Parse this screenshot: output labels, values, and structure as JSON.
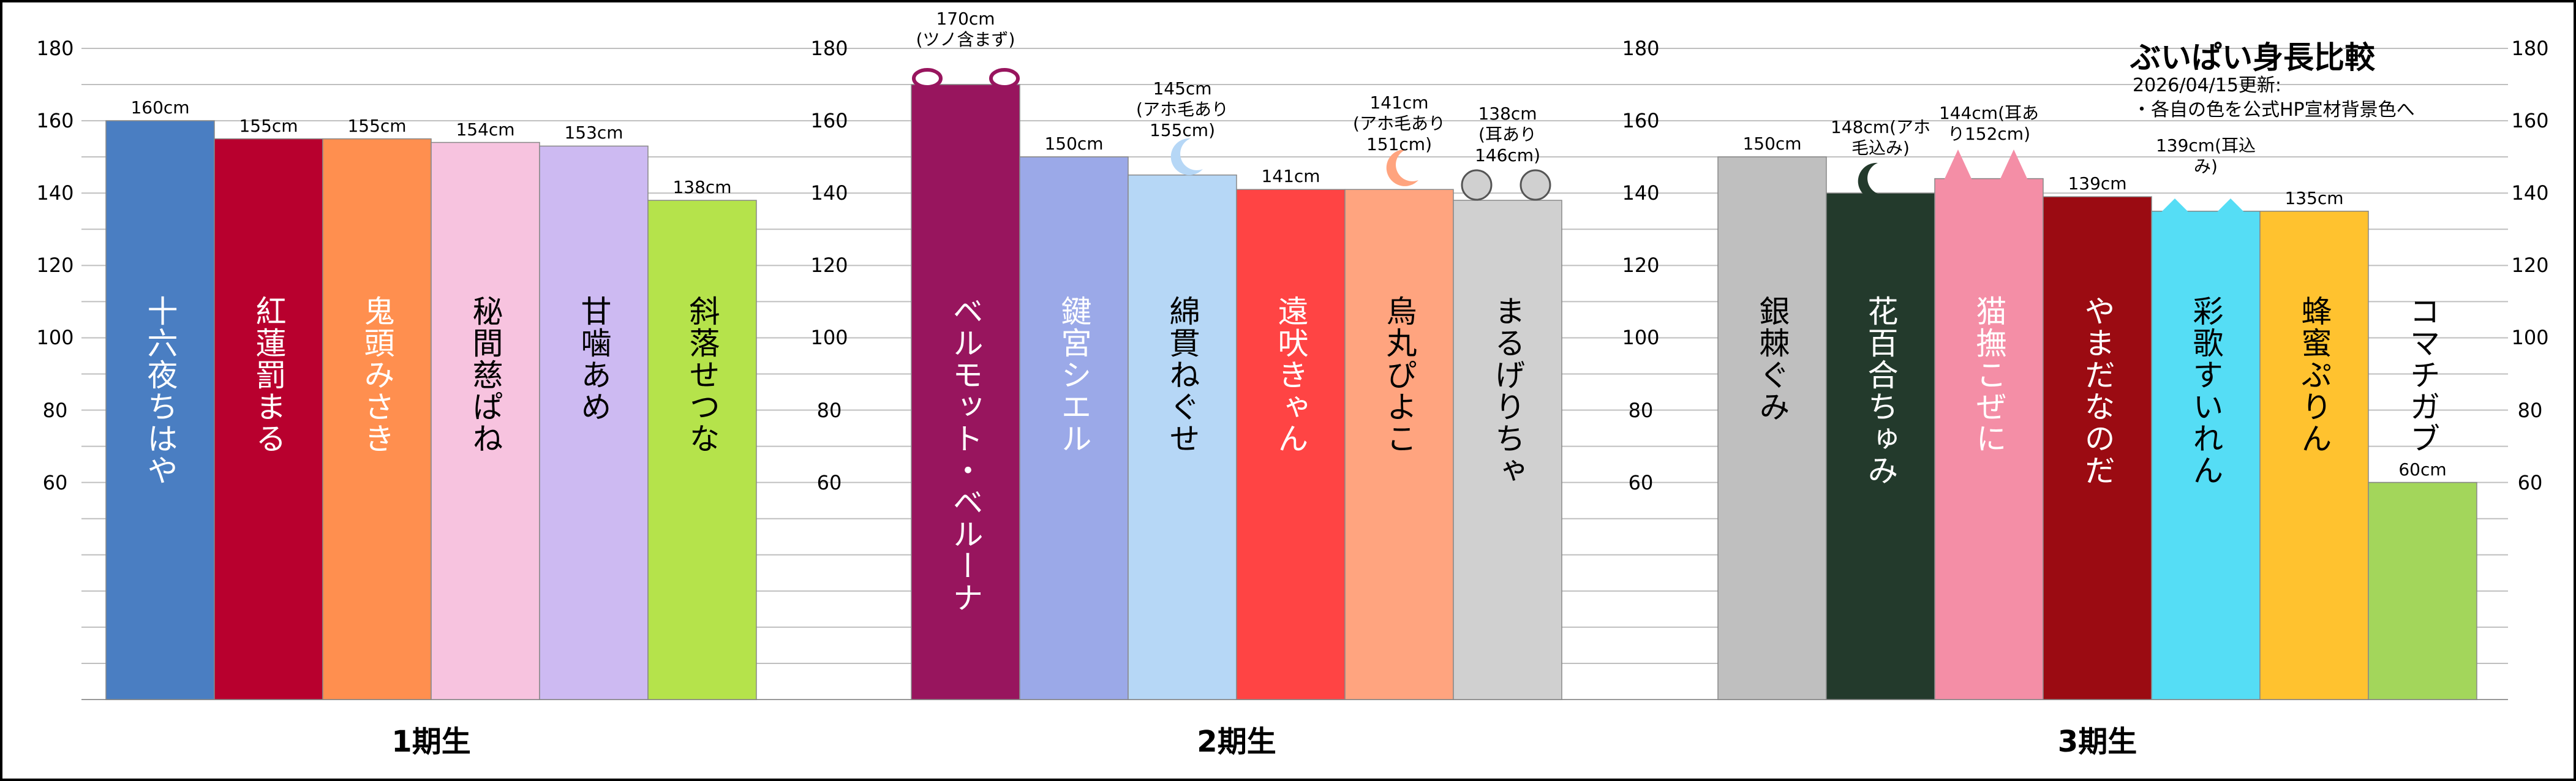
{
  "header": {
    "title": "ぶいぱい身長比較",
    "lines": [
      "2026/04/15更新:",
      "・各自の色を公式HP宣材背景色へ"
    ]
  },
  "chart_data": [
    {
      "type": "bar",
      "title": "1期生",
      "categories": [
        "十六夜ちはや",
        "紅蓮罰まる",
        "鬼頭みさき",
        "秘間慈ぱね",
        "甘噛あめ",
        "斜落せつな"
      ],
      "values": [
        160,
        155,
        155,
        154,
        153,
        138
      ],
      "value_labels": [
        "160cm",
        "155cm",
        "155cm",
        "154cm",
        "153cm",
        "138cm"
      ],
      "notes": [
        null,
        null,
        null,
        null,
        null,
        null
      ],
      "colors": [
        "#4a7ec2",
        "#b8002e",
        "#ff8f4f",
        "#f7c3df",
        "#cdbaf2",
        "#b5e34b"
      ],
      "label_colors": [
        "#ffffff",
        "#ffffff",
        "#ffffff",
        "#000000",
        "#000000",
        "#000000"
      ],
      "ylim": [
        0,
        180
      ],
      "yticks": [
        60,
        80,
        100,
        120,
        140,
        160,
        180
      ],
      "minor_yticks": [
        10,
        20,
        30,
        40,
        50,
        70,
        90,
        110,
        130,
        150,
        170
      ],
      "grid": true
    },
    {
      "type": "bar",
      "title": "2期生",
      "categories": [
        "ベルモット・ベルーナ",
        "鍵宮シエル",
        "綿貫ねぐせ",
        "遠吠きゃん",
        "烏丸ぴよこ",
        "まるげりちゃ"
      ],
      "values": [
        170,
        150,
        145,
        141,
        141,
        138
      ],
      "value_labels": [
        "170cm",
        "150cm",
        "145cm",
        "141cm",
        "141cm",
        "138cm"
      ],
      "notes": [
        "(ツノ含まず)",
        null,
        "(アホ毛あり155cm)",
        null,
        "(アホ毛あり151cm)",
        "(耳あり146cm)"
      ],
      "colors": [
        "#98155e",
        "#9ba9e8",
        "#b6d7f6",
        "#ff4444",
        "#ffa47f",
        "#d0d0d0"
      ],
      "label_colors": [
        "#ffffff",
        "#ffffff",
        "#000000",
        "#ffffff",
        "#000000",
        "#000000"
      ],
      "ylim": [
        0,
        180
      ],
      "yticks": [
        60,
        80,
        100,
        120,
        140,
        160,
        180
      ],
      "minor_yticks": [
        10,
        20,
        30,
        40,
        50,
        70,
        90,
        110,
        130,
        150,
        170
      ],
      "grid": true
    },
    {
      "type": "bar",
      "title": "3期生",
      "categories": [
        "銀棘ぐみ",
        "花百合ちゅみ",
        "猫撫こぜに",
        "やまだなのだ",
        "彩歌すいれん",
        "蜂蜜ぷりん",
        "コマチガブ"
      ],
      "values": [
        150,
        140,
        144,
        139,
        135,
        135,
        60
      ],
      "value_labels": [
        "150cm",
        null,
        null,
        "139cm",
        null,
        "135cm",
        "60cm"
      ],
      "notes": [
        null,
        "148cm(アホ毛込み)",
        "144cm(耳あり152cm)",
        null,
        "139cm(耳込み)",
        null,
        null
      ],
      "colors": [
        "#bfbfbf",
        "#233a2c",
        "#f48ea6",
        "#9b0b12",
        "#55ddf5",
        "#ffc22f",
        "#a3d65b"
      ],
      "label_colors": [
        "#000000",
        "#ffffff",
        "#ffffff",
        "#ffffff",
        "#000000",
        "#000000",
        "#000000"
      ],
      "ylim": [
        0,
        180
      ],
      "yticks": [
        60,
        80,
        100,
        120,
        140,
        160,
        180
      ],
      "minor_yticks": [
        10,
        20,
        30,
        40,
        50,
        70,
        90,
        110,
        130,
        150,
        170
      ],
      "grid": true
    }
  ]
}
